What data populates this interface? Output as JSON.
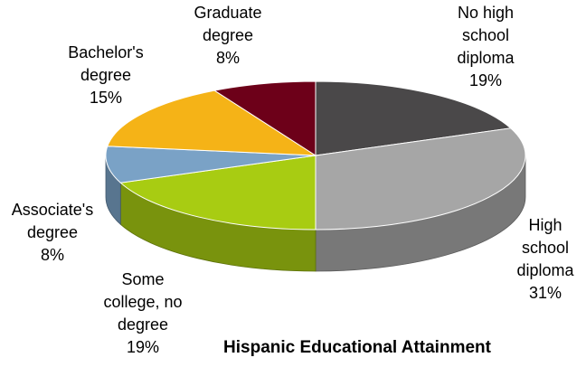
{
  "chart_data": {
    "type": "pie",
    "title": "Hispanic Educational  Attainment",
    "slices": [
      {
        "label": [
          "No high",
          "school",
          "diploma"
        ],
        "value": 19,
        "pct_text": "19%",
        "color": "#4a4849"
      },
      {
        "label": [
          "High",
          "school",
          "diploma"
        ],
        "value": 31,
        "pct_text": "31%",
        "color": "#a6a6a6"
      },
      {
        "label": [
          "Some",
          "college, no",
          "degree"
        ],
        "value": 19,
        "pct_text": "19%",
        "color": "#a8cc12"
      },
      {
        "label": [
          "Associate's",
          "degree"
        ],
        "value": 8,
        "pct_text": "8%",
        "color": "#7aa2c6"
      },
      {
        "label": [
          "Bachelor's",
          "degree"
        ],
        "value": 15,
        "pct_text": "15%",
        "color": "#f5b317"
      },
      {
        "label": [
          "Graduate",
          "degree"
        ],
        "value": 8,
        "pct_text": "8%",
        "color": "#6d0019"
      }
    ]
  }
}
